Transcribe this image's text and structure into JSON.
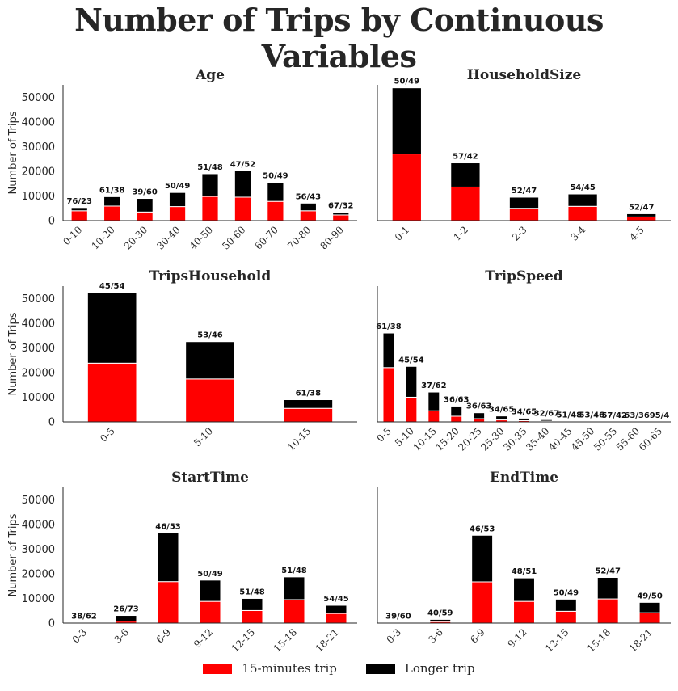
{
  "title": "Number of Trips by Continuous Variables",
  "ylabel": "Number of Trips",
  "colors": {
    "short": "#ff0000",
    "long": "#000000"
  },
  "legend": {
    "short_label": "15-minutes trip",
    "long_label": "Longer trip"
  },
  "chart_data": [
    {
      "type": "bar",
      "stacked": true,
      "title": "Age",
      "ylabel": "Number of Trips",
      "ylim": [
        0,
        55000
      ],
      "yticks": [
        0,
        10000,
        20000,
        30000,
        40000,
        50000
      ],
      "categories": [
        "0-10",
        "10-20",
        "20-30",
        "30-40",
        "40-50",
        "50-60",
        "60-70",
        "70-80",
        "80-90"
      ],
      "series": [
        {
          "name": "15-minutes trip",
          "values": [
            4000,
            5900,
            3500,
            5700,
            9800,
            9500,
            7800,
            4000,
            2300
          ]
        },
        {
          "name": "Longer trip",
          "values": [
            1300,
            3800,
            5500,
            5700,
            9200,
            10700,
            7700,
            3100,
            1100
          ]
        }
      ],
      "annotations": [
        "76/23",
        "61/38",
        "39/60",
        "50/49",
        "51/48",
        "47/52",
        "50/49",
        "56/43",
        "67/32"
      ]
    },
    {
      "type": "bar",
      "stacked": true,
      "title": "HouseholdSize",
      "ylabel": "",
      "ylim": [
        0,
        55000
      ],
      "yticks": [
        0,
        10000,
        20000,
        30000,
        40000,
        50000
      ],
      "categories": [
        "0-1",
        "1-2",
        "2-3",
        "3-4",
        "4-5"
      ],
      "series": [
        {
          "name": "15-minutes trip",
          "values": [
            27000,
            13600,
            5000,
            5800,
            1500
          ]
        },
        {
          "name": "Longer trip",
          "values": [
            26800,
            9800,
            4500,
            5000,
            1300
          ]
        }
      ],
      "annotations": [
        "50/49",
        "57/42",
        "52/47",
        "54/45",
        "52/47"
      ]
    },
    {
      "type": "bar",
      "stacked": true,
      "title": "TripsHousehold",
      "ylabel": "Number of Trips",
      "ylim": [
        0,
        55000
      ],
      "yticks": [
        0,
        10000,
        20000,
        30000,
        40000,
        50000
      ],
      "categories": [
        "0-5",
        "5-10",
        "10-15"
      ],
      "series": [
        {
          "name": "15-minutes trip",
          "values": [
            23800,
            17400,
            5500
          ]
        },
        {
          "name": "Longer trip",
          "values": [
            28500,
            15100,
            3500
          ]
        }
      ],
      "annotations": [
        "45/54",
        "53/46",
        "61/38"
      ]
    },
    {
      "type": "bar",
      "stacked": true,
      "title": "TripSpeed",
      "ylabel": "",
      "ylim": [
        0,
        55000
      ],
      "yticks": [
        0,
        10000,
        20000,
        30000,
        40000,
        50000
      ],
      "categories": [
        "0-5",
        "5-10",
        "10-15",
        "15-20",
        "20-25",
        "25-30",
        "30-35",
        "35-40",
        "40-45",
        "45-50",
        "50-55",
        "55-60",
        "60-65"
      ],
      "series": [
        {
          "name": "15-minutes trip",
          "values": [
            22000,
            10000,
            4500,
            2300,
            1300,
            800,
            500,
            300,
            100,
            50,
            30,
            20,
            10
          ]
        },
        {
          "name": "Longer trip",
          "values": [
            14000,
            12500,
            7600,
            4100,
            2400,
            1600,
            1000,
            600,
            100,
            50,
            20,
            10,
            1
          ]
        }
      ],
      "annotations": [
        "61/38",
        "45/54",
        "37/62",
        "36/63",
        "36/63",
        "34/65",
        "34/65",
        "32/67",
        "51/48",
        "53/46",
        "57/42",
        "63/36",
        "95/4"
      ]
    },
    {
      "type": "bar",
      "stacked": true,
      "title": "StartTime",
      "ylabel": "Number of Trips",
      "ylim": [
        0,
        55000
      ],
      "yticks": [
        0,
        10000,
        20000,
        30000,
        40000,
        50000
      ],
      "categories": [
        "0-3",
        "3-6",
        "6-9",
        "9-12",
        "12-15",
        "15-18",
        "18-21"
      ],
      "series": [
        {
          "name": "15-minutes trip",
          "values": [
            50,
            800,
            16800,
            8800,
            5100,
            9500,
            3900
          ]
        },
        {
          "name": "Longer trip",
          "values": [
            80,
            2300,
            19700,
            8600,
            4900,
            9200,
            3300
          ]
        }
      ],
      "annotations": [
        "38/62",
        "26/73",
        "46/53",
        "50/49",
        "51/48",
        "51/48",
        "54/45"
      ]
    },
    {
      "type": "bar",
      "stacked": true,
      "title": "EndTime",
      "ylabel": "",
      "ylim": [
        0,
        55000
      ],
      "yticks": [
        0,
        10000,
        20000,
        30000,
        40000,
        50000
      ],
      "categories": [
        "0-3",
        "3-6",
        "6-9",
        "9-12",
        "12-15",
        "15-18",
        "18-21"
      ],
      "series": [
        {
          "name": "15-minutes trip",
          "values": [
            40,
            600,
            16700,
            8800,
            4800,
            9800,
            4200
          ]
        },
        {
          "name": "Longer trip",
          "values": [
            60,
            900,
            18900,
            9500,
            4900,
            8700,
            4200
          ]
        }
      ],
      "annotations": [
        "39/60",
        "40/59",
        "46/53",
        "48/51",
        "50/49",
        "52/47",
        "49/50"
      ]
    }
  ]
}
